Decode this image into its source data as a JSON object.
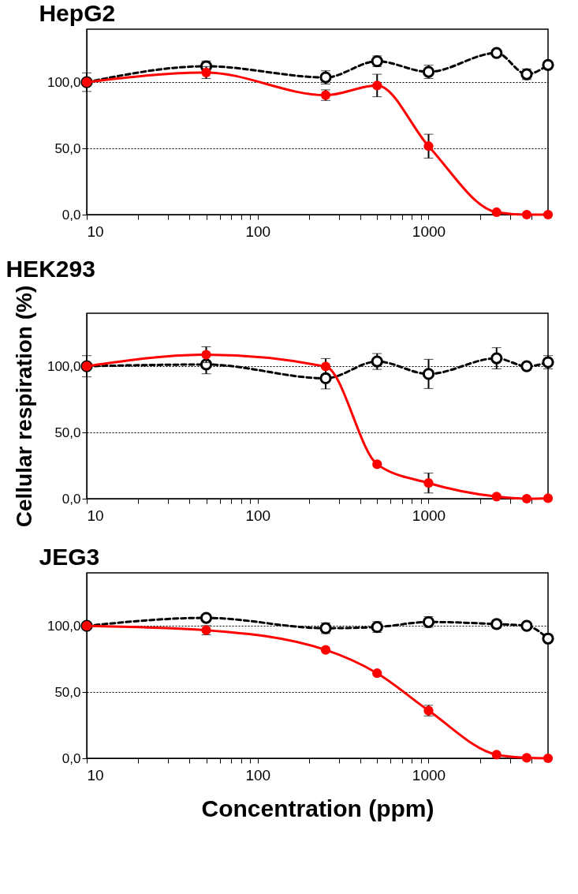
{
  "chart_data": [
    {
      "type": "line",
      "title": "HepG2",
      "x": [
        10,
        50,
        250,
        500,
        1000,
        2500,
        3750,
        5000
      ],
      "log": "x",
      "grid": "y",
      "marker": "circle",
      "xlim": [
        10,
        5000
      ],
      "ylim": [
        0,
        140
      ],
      "xticks": [
        10,
        {
          "value": 20,
          "label": null
        },
        {
          "value": 30,
          "label": null
        },
        {
          "value": 40,
          "label": null
        },
        {
          "value": 50,
          "label": null
        },
        {
          "value": 60,
          "label": null
        },
        {
          "value": 70,
          "label": null
        },
        {
          "value": 80,
          "label": null
        },
        {
          "value": 90,
          "label": null
        },
        100,
        {
          "value": 200,
          "label": null
        },
        {
          "value": 300,
          "label": null
        },
        {
          "value": 400,
          "label": null
        },
        {
          "value": 500,
          "label": null
        },
        {
          "value": 600,
          "label": null
        },
        {
          "value": 700,
          "label": null
        },
        {
          "value": 800,
          "label": null
        },
        {
          "value": 900,
          "label": null
        },
        1000,
        {
          "value": 2000,
          "label": null
        },
        {
          "value": 3000,
          "label": null
        },
        {
          "value": 4000,
          "label": null
        }
      ],
      "yticks": [
        {
          "value": 0,
          "label": "0,0"
        },
        {
          "value": 50,
          "label": "50,0"
        },
        {
          "value": 100,
          "label": "100,0"
        }
      ],
      "series": [
        {
          "color": "#000000",
          "line_style": "dashed",
          "values": [
            100,
            112,
            103.6,
            115.8,
            107.8,
            122,
            106,
            113
          ],
          "errors": [
            null,
            4,
            5,
            4,
            5,
            2,
            4,
            2
          ]
        },
        {
          "color": "#ff0000",
          "line_style": "solid",
          "values": [
            100,
            107.3,
            90.2,
            97.5,
            51.7,
            1.8,
            0,
            0
          ],
          "errors": [
            7,
            4.5,
            4,
            8.5,
            9,
            null,
            null,
            null
          ]
        }
      ]
    },
    {
      "type": "line",
      "title": "HEK293",
      "ylabel": "Cellular respiration (%)",
      "x": [
        10,
        50,
        250,
        500,
        1000,
        2500,
        3750,
        5000
      ],
      "log": "x",
      "grid": "y",
      "marker": "circle",
      "xlim": [
        10,
        5000
      ],
      "ylim": [
        0,
        140
      ],
      "xticks": [
        10,
        {
          "value": 20,
          "label": null
        },
        {
          "value": 30,
          "label": null
        },
        {
          "value": 40,
          "label": null
        },
        {
          "value": 50,
          "label": null
        },
        {
          "value": 60,
          "label": null
        },
        {
          "value": 70,
          "label": null
        },
        {
          "value": 80,
          "label": null
        },
        {
          "value": 90,
          "label": null
        },
        100,
        {
          "value": 200,
          "label": null
        },
        {
          "value": 300,
          "label": null
        },
        {
          "value": 400,
          "label": null
        },
        {
          "value": 500,
          "label": null
        },
        {
          "value": 600,
          "label": null
        },
        {
          "value": 700,
          "label": null
        },
        {
          "value": 800,
          "label": null
        },
        {
          "value": 900,
          "label": null
        },
        1000,
        {
          "value": 2000,
          "label": null
        },
        {
          "value": 3000,
          "label": null
        },
        {
          "value": 4000,
          "label": null
        }
      ],
      "yticks": [
        {
          "value": 0,
          "label": "0,0"
        },
        {
          "value": 50,
          "label": "50,0"
        },
        {
          "value": 100,
          "label": "100,0"
        }
      ],
      "series": [
        {
          "color": "#000000",
          "line_style": "dashed",
          "values": [
            100,
            101.3,
            90.9,
            103.6,
            94.2,
            106,
            100,
            103
          ],
          "errors": [
            null,
            7,
            8,
            6,
            11,
            8,
            null,
            5
          ]
        },
        {
          "color": "#ff0000",
          "line_style": "solid",
          "values": [
            100,
            108.7,
            99.8,
            26,
            11.8,
            1.6,
            0,
            0.3
          ],
          "errors": [
            8,
            6,
            6,
            null,
            7.5,
            null,
            null,
            null
          ]
        }
      ]
    },
    {
      "type": "line",
      "title": "JEG3",
      "xlabel": "Concentration (ppm)",
      "x": [
        10,
        50,
        250,
        500,
        1000,
        2500,
        3750,
        5000
      ],
      "log": "x",
      "grid": "y",
      "marker": "circle",
      "xlim": [
        10,
        5000
      ],
      "ylim": [
        0,
        140
      ],
      "xticks": [
        10,
        {
          "value": 20,
          "label": null
        },
        {
          "value": 30,
          "label": null
        },
        {
          "value": 40,
          "label": null
        },
        {
          "value": 50,
          "label": null
        },
        {
          "value": 60,
          "label": null
        },
        {
          "value": 70,
          "label": null
        },
        {
          "value": 80,
          "label": null
        },
        {
          "value": 90,
          "label": null
        },
        100,
        {
          "value": 200,
          "label": null
        },
        {
          "value": 300,
          "label": null
        },
        {
          "value": 400,
          "label": null
        },
        {
          "value": 500,
          "label": null
        },
        {
          "value": 600,
          "label": null
        },
        {
          "value": 700,
          "label": null
        },
        {
          "value": 800,
          "label": null
        },
        {
          "value": 900,
          "label": null
        },
        1000,
        {
          "value": 2000,
          "label": null
        },
        {
          "value": 3000,
          "label": null
        },
        {
          "value": 4000,
          "label": null
        }
      ],
      "yticks": [
        {
          "value": 0,
          "label": "0,0"
        },
        {
          "value": 50,
          "label": "50,0"
        },
        {
          "value": 100,
          "label": "100,0"
        }
      ],
      "series": [
        {
          "color": "#000000",
          "line_style": "dashed",
          "values": [
            100,
            106,
            98.2,
            99.1,
            102.9,
            101.3,
            100,
            90.4
          ],
          "errors": [
            null,
            null,
            4,
            4,
            4,
            3,
            null,
            null
          ]
        },
        {
          "color": "#ff0000",
          "line_style": "solid",
          "values": [
            100,
            96.7,
            81.8,
            64.2,
            36,
            2.7,
            0.4,
            0
          ],
          "errors": [
            null,
            3.5,
            null,
            null,
            4,
            null,
            null,
            null
          ]
        }
      ]
    }
  ]
}
